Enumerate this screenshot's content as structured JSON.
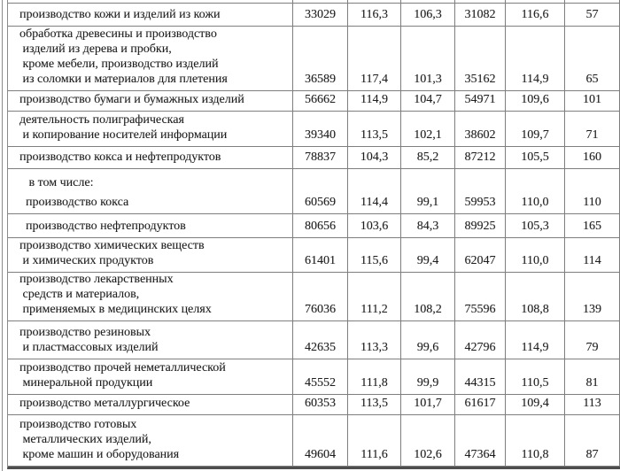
{
  "table": {
    "rows": [
      {
        "label": "производство кожи и изделий из кожи",
        "values": [
          "33029",
          "116,3",
          "106,3",
          "31082",
          "116,6",
          "57"
        ]
      },
      {
        "label": "обработка древесины и производство\n изделий из дерева и пробки,\n кроме мебели, производство изделий\n из соломки и материалов для плетения",
        "values": [
          "36589",
          "117,4",
          "101,3",
          "35162",
          "114,9",
          "65"
        ]
      },
      {
        "label": "производство бумаги и бумажных изделий",
        "values": [
          "56662",
          "114,9",
          "104,7",
          "54971",
          "109,6",
          "101"
        ]
      },
      {
        "label": "деятельность полиграфическая\n и копирование носителей информации",
        "values": [
          "39340",
          "113,5",
          "102,1",
          "38602",
          "109,7",
          "71"
        ]
      },
      {
        "label": "производство кокса и нефтепродуктов",
        "values": [
          "78837",
          "104,3",
          "85,2",
          "87212",
          "105,5",
          "160"
        ]
      },
      {
        "label": "   в том числе:",
        "values": [
          "",
          "",
          "",
          "",
          "",
          ""
        ]
      },
      {
        "label": "  производство кокса",
        "values": [
          "60569",
          "114,4",
          "99,1",
          "59953",
          "110,0",
          "110"
        ]
      },
      {
        "label": "  производство нефтепродуктов",
        "values": [
          "80656",
          "103,6",
          "84,3",
          "89925",
          "105,3",
          "165"
        ]
      },
      {
        "label": "производство химических веществ\n и химических продуктов",
        "values": [
          "61401",
          "115,6",
          "99,4",
          "62047",
          "110,0",
          "114"
        ]
      },
      {
        "label": "производство лекарственных\n средств и материалов,\n применяемых в медицинских целях",
        "values": [
          "76036",
          "111,2",
          "108,2",
          "75596",
          "108,8",
          "139"
        ]
      },
      {
        "label": "производство резиновых\n и пластмассовых изделий",
        "values": [
          "42635",
          "113,3",
          "99,6",
          "42796",
          "114,9",
          "79"
        ]
      },
      {
        "label": "производство прочей неметаллической\n минеральной продукции",
        "values": [
          "45552",
          "111,8",
          "99,9",
          "44315",
          "110,5",
          "81"
        ]
      },
      {
        "label": "производство металлургическое",
        "values": [
          "60353",
          "113,5",
          "101,7",
          "61617",
          "109,4",
          "113"
        ]
      },
      {
        "label": "производство готовых\n металлических изделий,\n кроме машин и оборудования",
        "values": [
          "49604",
          "111,6",
          "102,6",
          "47364",
          "110,8",
          "87"
        ]
      }
    ]
  },
  "colors": {
    "grid": "#7e7e7e",
    "outer_rule": "#8a8a8a",
    "bottom_border": "#4d4d4d",
    "text": "#1f1f1f",
    "background": "#ffffff"
  }
}
